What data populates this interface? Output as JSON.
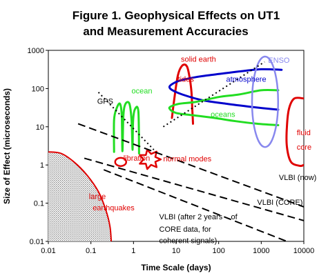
{
  "chart_data": {
    "type": "line",
    "title": "Figure 1. Geophysical Effects on UT1",
    "subtitle": "and Measurement Accuracies",
    "xlabel": "Time Scale (days)",
    "ylabel": "Size of Effect (microseconds)",
    "x_scale": "log",
    "y_scale": "log",
    "xlim": [
      0.01,
      10000
    ],
    "ylim": [
      0.01,
      1000
    ],
    "x_ticks": [
      "0.01",
      "0.1",
      "1",
      "10",
      "100",
      "1000",
      "10000"
    ],
    "y_ticks": [
      "0.01",
      "0.1",
      "1",
      "10",
      "100",
      "1000"
    ],
    "grid": false,
    "colors": {
      "red": "#e00000",
      "blue": "#0000cc",
      "green": "#22dd22",
      "lavender": "#8888ee",
      "black": "#000000",
      "stipple": "#909090"
    },
    "series": [
      {
        "name": "large earthquakes",
        "kind": "stippled-region",
        "color": "red",
        "boundary": [
          [
            0.01,
            2.2
          ],
          [
            0.02,
            2
          ],
          [
            0.04,
            1.2
          ],
          [
            0.08,
            0.55
          ],
          [
            0.15,
            0.2
          ],
          [
            0.22,
            0.07
          ],
          [
            0.28,
            0.025
          ],
          [
            0.3,
            0.01
          ]
        ]
      },
      {
        "name": "solid earth tides",
        "kind": "curve",
        "color": "red",
        "points": [
          [
            8,
            17
          ],
          [
            9,
            50
          ],
          [
            11,
            220
          ],
          [
            14,
            400
          ],
          [
            18,
            380
          ],
          [
            21,
            180
          ],
          [
            23,
            80
          ],
          [
            24,
            30
          ],
          [
            25,
            12
          ]
        ]
      },
      {
        "name": "atmosphere",
        "kind": "curve",
        "color": "blue",
        "points": [
          [
            3000,
            310
          ],
          [
            1000,
            320
          ],
          [
            300,
            280
          ],
          [
            100,
            240
          ],
          [
            30,
            200
          ],
          [
            12,
            160
          ],
          [
            8,
            130
          ],
          [
            7,
            110
          ],
          [
            8,
            92
          ],
          [
            14,
            70
          ],
          [
            40,
            50
          ],
          [
            150,
            40
          ],
          [
            600,
            33
          ],
          [
            2500,
            28
          ]
        ]
      },
      {
        "name": "oceans",
        "kind": "curve",
        "color": "green",
        "points": [
          [
            2500,
            90
          ],
          [
            1000,
            90
          ],
          [
            300,
            70
          ],
          [
            100,
            60
          ],
          [
            30,
            45
          ],
          [
            12,
            40
          ],
          [
            8,
            35
          ],
          [
            7,
            30
          ],
          [
            10,
            23
          ],
          [
            25,
            20
          ],
          [
            80,
            17
          ],
          [
            250,
            14
          ],
          [
            800,
            12
          ],
          [
            2500,
            11
          ]
        ]
      },
      {
        "name": "ocean",
        "kind": "curve",
        "color": "green",
        "points": [
          [
            0.35,
            2.2
          ],
          [
            0.35,
            15
          ],
          [
            0.4,
            30
          ],
          [
            0.48,
            40
          ],
          [
            0.53,
            20
          ],
          [
            0.55,
            2.3
          ],
          [
            0.58,
            20
          ],
          [
            0.65,
            40
          ],
          [
            0.8,
            40
          ],
          [
            0.9,
            15
          ],
          [
            0.95,
            2.5
          ],
          [
            0.98,
            15
          ],
          [
            1.1,
            30
          ],
          [
            1.3,
            25
          ],
          [
            1.35,
            2
          ]
        ]
      },
      {
        "name": "ENSO",
        "kind": "ellipse",
        "color": "lavender",
        "center": [
          1230,
          45
        ],
        "x_range": [
          610,
          2500
        ],
        "y_range": [
          3,
          700
        ]
      },
      {
        "name": "fluid core",
        "kind": "curve",
        "color": "red",
        "points": [
          [
            10000,
            55
          ],
          [
            6000,
            55
          ],
          [
            4500,
            30
          ],
          [
            4000,
            10
          ],
          [
            4000,
            3
          ],
          [
            5000,
            1.2
          ],
          [
            8000,
            0.95
          ],
          [
            10000,
            1
          ]
        ]
      },
      {
        "name": "libration",
        "kind": "loop",
        "color": "red",
        "center": [
          0.5,
          1.2
        ]
      },
      {
        "name": "normal modes",
        "kind": "star",
        "color": "red",
        "center": [
          2.4,
          1.4
        ]
      },
      {
        "name": "GPS",
        "kind": "dotted-line",
        "color": "black",
        "points": [
          [
            0.15,
            80
          ],
          [
            3,
            2.5
          ]
        ]
      },
      {
        "name": "VLBI",
        "kind": "dotted-line",
        "color": "black",
        "points": [
          [
            5,
            10
          ],
          [
            1200,
            500
          ]
        ]
      },
      {
        "name": "VLBI (now)",
        "kind": "dashed-line",
        "color": "black",
        "points": [
          [
            0.05,
            12
          ],
          [
            10000,
            0.08
          ]
        ]
      },
      {
        "name": "VLBI (CORE)",
        "kind": "dashed-line",
        "color": "black",
        "points": [
          [
            0.07,
            1.5
          ],
          [
            10000,
            0.035
          ]
        ]
      },
      {
        "name": "VLBI (after 2 years of CORE data, for coherent signals)",
        "kind": "dashed-line",
        "color": "black",
        "points": [
          [
            0.2,
            0.75
          ],
          [
            4000,
            0.01
          ]
        ]
      }
    ],
    "annotations": [
      {
        "id": "large_eq_1",
        "text": "large",
        "color": "red",
        "at": [
          0.09,
          0.13
        ]
      },
      {
        "id": "large_eq_2",
        "text": "earthquakes",
        "color": "red",
        "at": [
          0.11,
          0.065
        ]
      },
      {
        "id": "solid_1",
        "text": "solid earth",
        "color": "red",
        "at": [
          13,
          500
        ]
      },
      {
        "id": "solid_2",
        "text": "tides",
        "color": "red",
        "at": [
          11,
          150
        ]
      },
      {
        "id": "ocean",
        "text": "ocean",
        "color": "green",
        "at": [
          0.9,
          75
        ]
      },
      {
        "id": "atmosphere",
        "text": "atmosphere",
        "color": "blue",
        "at": [
          150,
          150
        ]
      },
      {
        "id": "oceans",
        "text": "oceans",
        "color": "green",
        "at": [
          65,
          18
        ]
      },
      {
        "id": "enso",
        "text": "ENSO",
        "color": "lavender",
        "at": [
          1450,
          470
        ]
      },
      {
        "id": "gps",
        "text": "GPS",
        "color": "black",
        "at": [
          0.14,
          40
        ]
      },
      {
        "id": "fluid_1",
        "text": "fluid",
        "color": "red",
        "at": [
          6800,
          6
        ]
      },
      {
        "id": "fluid_2",
        "text": "core",
        "color": "red",
        "at": [
          6800,
          2.5
        ]
      },
      {
        "id": "libration",
        "text": "libration",
        "color": "red",
        "at": [
          0.58,
          1.3
        ]
      },
      {
        "id": "normal_modes",
        "text": "normal modes",
        "color": "red",
        "at": [
          5,
          1.25
        ]
      },
      {
        "id": "vlbi_now",
        "text": "VLBI (now)",
        "color": "black",
        "at": [
          2600,
          0.4
        ]
      },
      {
        "id": "vlbi_core",
        "text": "VLBI (CORE)",
        "color": "black",
        "at": [
          800,
          0.09
        ]
      },
      {
        "id": "vlbi_after_1",
        "text": "VLBI (after 2 years",
        "color": "black",
        "at": [
          4,
          0.038
        ]
      },
      {
        "id": "vlbi_after_2",
        "text": "of",
        "color": "black",
        "at": [
          4,
          0.038
        ]
      },
      {
        "id": "vlbi_after_3",
        "text": "CORE data, for",
        "color": "black",
        "at": [
          4,
          0.018
        ]
      },
      {
        "id": "vlbi_after_4",
        "text": "coherent signals)",
        "color": "black",
        "at": [
          4,
          0.009
        ]
      }
    ]
  }
}
